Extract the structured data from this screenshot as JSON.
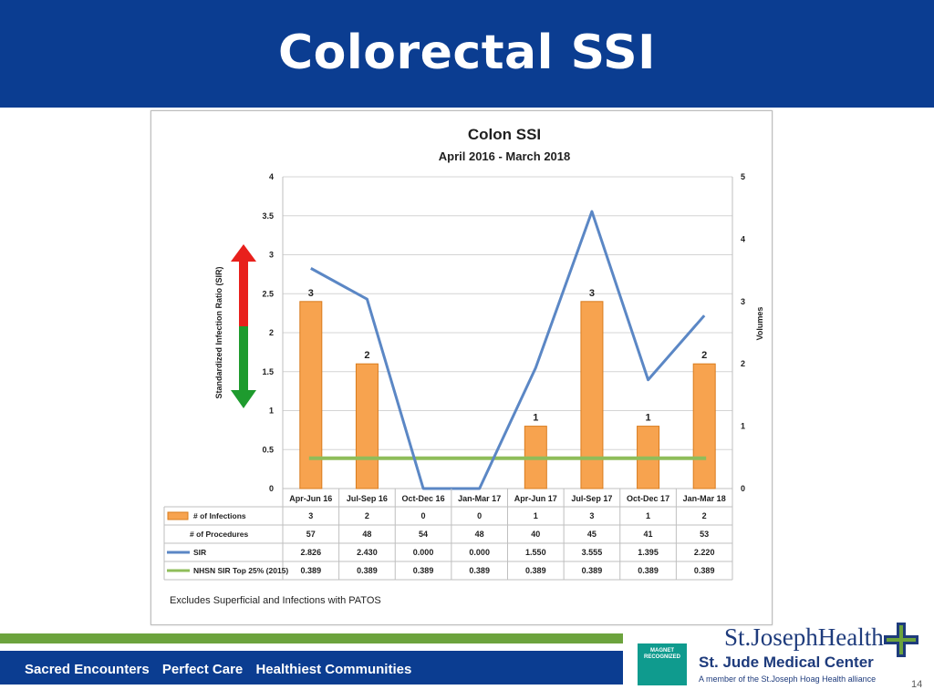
{
  "slide": {
    "title": "Colorectal SSI",
    "page_number": "14"
  },
  "footer": {
    "tagline": [
      "Sacred Encounters",
      "Perfect Care",
      "Healthiest Communities"
    ],
    "org_name": "St.JosephHealth",
    "center_name": "St. Jude Medical Center",
    "member_text": "A member of the St.Joseph Hoag Health alliance",
    "magnet_text": "MAGNET RECOGNIZED",
    "colors": {
      "navy": "#0b3d91",
      "green": "#6ca33d",
      "teal": "#0f9b8e"
    }
  },
  "chart_data": {
    "type": "bar",
    "title": "Colon SSI",
    "subtitle": "April 2016 - March 2018",
    "ylabel": "Standardized Infection Ratio (SIR)",
    "y2label": "Volumes",
    "ylim": [
      0,
      4
    ],
    "y2lim": [
      0,
      5
    ],
    "yticks": [
      "0",
      "0.5",
      "1",
      "1.5",
      "2",
      "2.5",
      "3",
      "3.5",
      "4"
    ],
    "y2ticks": [
      "0",
      "1",
      "2",
      "3",
      "4",
      "5"
    ],
    "categories": [
      "Apr-Jun 16",
      "Jul-Sep 16",
      "Oct-Dec 16",
      "Jan-Mar 17",
      "Apr-Jun 17",
      "Jul-Sep 17",
      "Oct-Dec 17",
      "Jan-Mar 18"
    ],
    "series": [
      {
        "name": "# of Infections",
        "type": "bar",
        "axis": "right",
        "color": "#f7a34f",
        "values": [
          3,
          2,
          0,
          0,
          1,
          3,
          1,
          2
        ],
        "table": [
          "3",
          "2",
          "0",
          "0",
          "1",
          "3",
          "1",
          "2"
        ]
      },
      {
        "name": "# of Procedures",
        "type": "table",
        "values": [
          57,
          48,
          54,
          48,
          40,
          45,
          41,
          53
        ],
        "table": [
          "57",
          "48",
          "54",
          "48",
          "40",
          "45",
          "41",
          "53"
        ]
      },
      {
        "name": "SIR",
        "type": "line",
        "axis": "left",
        "color": "#5b87c5",
        "values": [
          2.826,
          2.43,
          0.0,
          0.0,
          1.55,
          3.555,
          1.395,
          2.22
        ],
        "table": [
          "2.826",
          "2.430",
          "0.000",
          "0.000",
          "1.550",
          "3.555",
          "1.395",
          "2.220"
        ]
      },
      {
        "name": "NHSN SIR Top 25% (2015)",
        "type": "line",
        "axis": "left",
        "color": "#8fbd5a",
        "values": [
          0.389,
          0.389,
          0.389,
          0.389,
          0.389,
          0.389,
          0.389,
          0.389
        ],
        "table": [
          "0.389",
          "0.389",
          "0.389",
          "0.389",
          "0.389",
          "0.389",
          "0.389",
          "0.389"
        ]
      }
    ],
    "bar_labels": [
      "3",
      "2",
      "",
      "",
      "1",
      "3",
      "1",
      "2"
    ],
    "note": "Excludes Superficial and Infections with PATOS",
    "arrow_colors": {
      "up": "#e8201c",
      "down": "#1e9b2e"
    },
    "grid": true
  }
}
